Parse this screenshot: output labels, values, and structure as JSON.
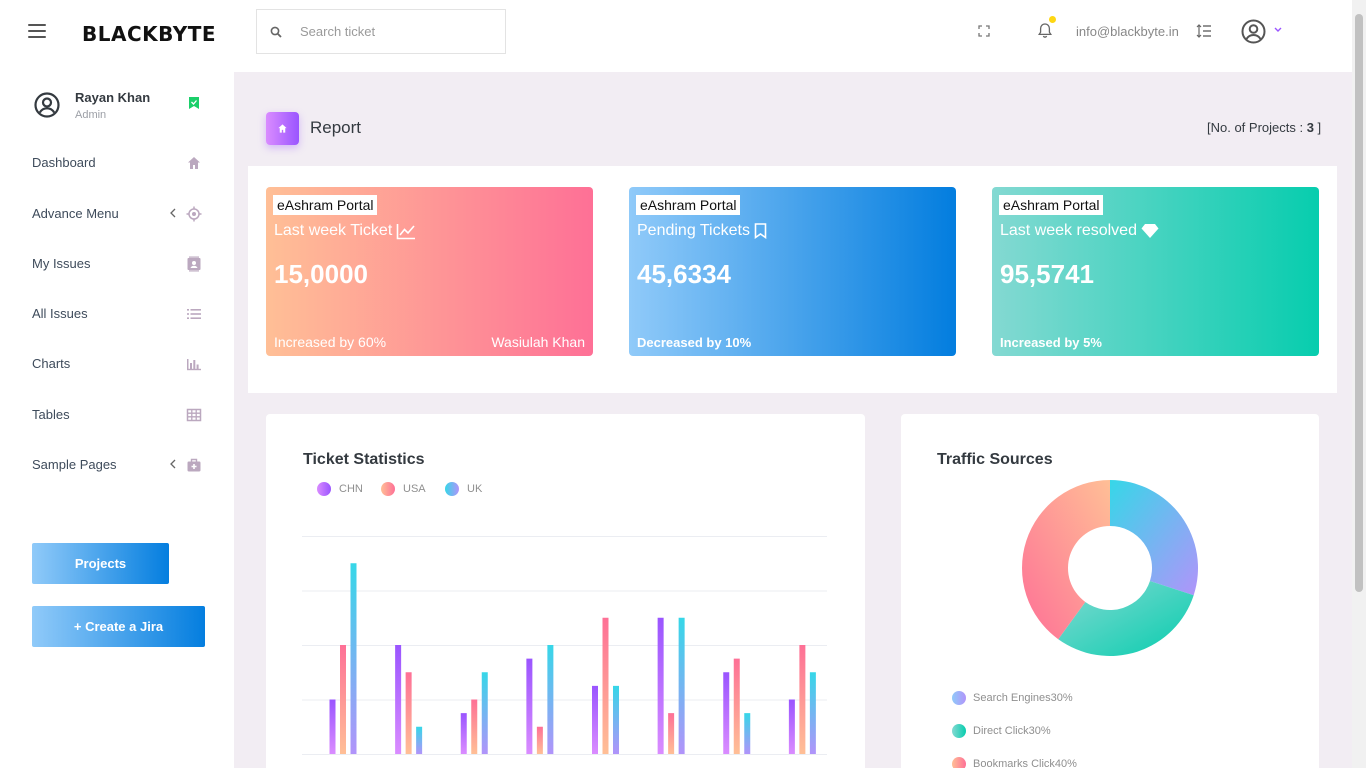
{
  "header": {
    "brand": "BLACKBYTE",
    "search_placeholder": "Search ticket",
    "email": "info@blackbyte.in"
  },
  "sidebar": {
    "profile": {
      "name": "Rayan Khan",
      "role": "Admin"
    },
    "items": [
      {
        "label": "Dashboard",
        "icon": "home-icon"
      },
      {
        "label": "Advance Menu",
        "icon": "crosshairs-icon"
      },
      {
        "label": "My Issues",
        "icon": "contact-card-icon"
      },
      {
        "label": "All Issues",
        "icon": "list-icon"
      },
      {
        "label": "Charts",
        "icon": "bar-chart-icon"
      },
      {
        "label": "Tables",
        "icon": "table-icon"
      },
      {
        "label": "Sample Pages",
        "icon": "medical-bag-icon"
      }
    ],
    "projects_button": "Projects",
    "create_button": "+ Create a Jira"
  },
  "page": {
    "title": "Report",
    "projects_label": "[No. of Projects : ",
    "projects_count": "3",
    "projects_suffix": " ]"
  },
  "stats": [
    {
      "tag": "eAshram Portal",
      "title": "Last week Ticket",
      "icon": "chart-line-icon",
      "value": "15,0000",
      "footer": "Increased by 60%",
      "footer_right": "Wasiulah Khan"
    },
    {
      "tag": "eAshram Portal",
      "title": "Pending Tickets",
      "icon": "bookmark-icon",
      "value": "45,6334",
      "footer": "Decreased by 10%"
    },
    {
      "tag": "eAshram Portal",
      "title": "Last week resolved",
      "icon": "diamond-icon",
      "value": "95,5741",
      "footer": "Increased by 5%"
    }
  ],
  "ticket_chart": {
    "title": "Ticket Statistics",
    "colors": {
      "CHN": "#9a55ff",
      "USA": "#fe7c96",
      "UK": "#47a6f0"
    }
  },
  "traffic": {
    "title": "Traffic Sources",
    "legend": [
      {
        "label": "Search Engines",
        "value": "30%",
        "color": "#47a6f0"
      },
      {
        "label": "Direct Click",
        "value": "30%",
        "color": "#1bcfb4"
      },
      {
        "label": "Bookmarks Click",
        "value": "40%",
        "color": "#fe7c96"
      }
    ]
  },
  "chart_data": [
    {
      "type": "bar",
      "title": "Ticket Statistics",
      "categories": [
        "",
        "",
        "",
        "",
        "",
        "",
        "",
        ""
      ],
      "series": [
        {
          "name": "CHN",
          "values": [
            20,
            40,
            15,
            35,
            25,
            50,
            30,
            20
          ]
        },
        {
          "name": "USA",
          "values": [
            40,
            30,
            20,
            10,
            50,
            15,
            35,
            40
          ]
        },
        {
          "name": "UK",
          "values": [
            70,
            10,
            30,
            40,
            25,
            50,
            15,
            30
          ]
        }
      ],
      "ylim": [
        0,
        80
      ],
      "grid": true
    },
    {
      "type": "pie",
      "title": "Traffic Sources",
      "labels": [
        "Search Engines",
        "Direct Click",
        "Bookmarks Click"
      ],
      "values": [
        30,
        30,
        40
      ]
    }
  ]
}
